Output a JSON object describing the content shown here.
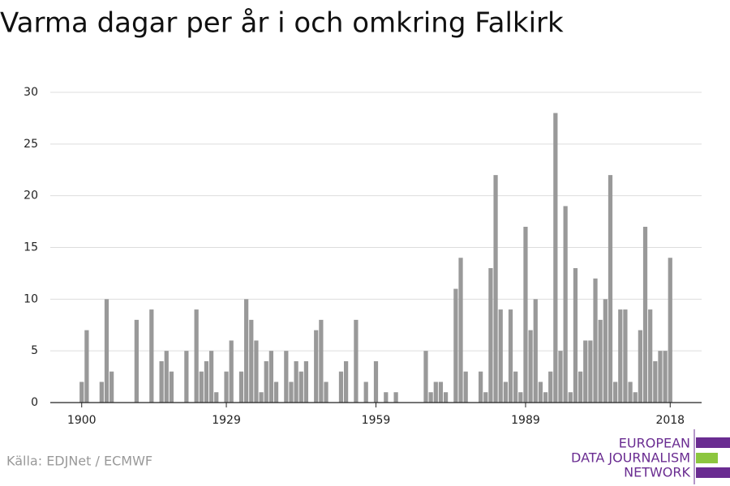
{
  "chart_data": {
    "type": "bar",
    "title": "Varma dagar per år i och omkring Falkirk",
    "source": "Källa: EDJNet / ECMWF",
    "logo": [
      "EUROPEAN",
      "DATA JOURNALISM",
      "NETWORK"
    ],
    "color": "#999999",
    "x": [
      1900,
      1901,
      1902,
      1903,
      1904,
      1905,
      1906,
      1907,
      1908,
      1909,
      1910,
      1911,
      1912,
      1913,
      1914,
      1915,
      1916,
      1917,
      1918,
      1919,
      1920,
      1921,
      1922,
      1923,
      1924,
      1925,
      1926,
      1927,
      1928,
      1929,
      1930,
      1931,
      1932,
      1933,
      1934,
      1935,
      1936,
      1937,
      1938,
      1939,
      1940,
      1941,
      1942,
      1943,
      1944,
      1945,
      1946,
      1947,
      1948,
      1949,
      1950,
      1951,
      1952,
      1953,
      1954,
      1955,
      1956,
      1957,
      1958,
      1959,
      1960,
      1961,
      1962,
      1963,
      1964,
      1965,
      1966,
      1967,
      1968,
      1969,
      1970,
      1971,
      1972,
      1973,
      1974,
      1975,
      1976,
      1977,
      1978,
      1979,
      1980,
      1981,
      1982,
      1983,
      1984,
      1985,
      1986,
      1987,
      1988,
      1989,
      1990,
      1991,
      1992,
      1993,
      1994,
      1995,
      1996,
      1997,
      1998,
      1999,
      2000,
      2001,
      2002,
      2003,
      2004,
      2005,
      2006,
      2007,
      2008,
      2009,
      2010,
      2011,
      2012,
      2013,
      2014,
      2015,
      2016,
      2017,
      2018
    ],
    "values": [
      2,
      7,
      0,
      0,
      2,
      10,
      3,
      0,
      0,
      0,
      0,
      8,
      0,
      0,
      9,
      0,
      4,
      5,
      3,
      0,
      0,
      5,
      0,
      9,
      3,
      4,
      5,
      1,
      0,
      3,
      6,
      0,
      3,
      10,
      8,
      6,
      1,
      4,
      5,
      2,
      0,
      5,
      2,
      4,
      3,
      4,
      0,
      7,
      8,
      2,
      0,
      0,
      3,
      4,
      0,
      8,
      0,
      2,
      0,
      4,
      0,
      1,
      0,
      1,
      0,
      0,
      0,
      0,
      0,
      5,
      1,
      2,
      2,
      1,
      0,
      11,
      14,
      3,
      0,
      0,
      3,
      1,
      13,
      22,
      9,
      2,
      9,
      3,
      1,
      17,
      7,
      10,
      2,
      1,
      3,
      28,
      5,
      19,
      1,
      13,
      3,
      6,
      6,
      12,
      8,
      10,
      22,
      2,
      9,
      9,
      2,
      1,
      7,
      17,
      9,
      4,
      5,
      5,
      14
    ],
    "xlim": [
      1893.7,
      2024.3
    ],
    "xticks": [
      1900,
      1929,
      1959,
      1989,
      2018
    ],
    "ylim": [
      0,
      30
    ],
    "yticks": [
      0,
      5,
      10,
      15,
      20,
      25,
      30
    ],
    "grid": true
  }
}
